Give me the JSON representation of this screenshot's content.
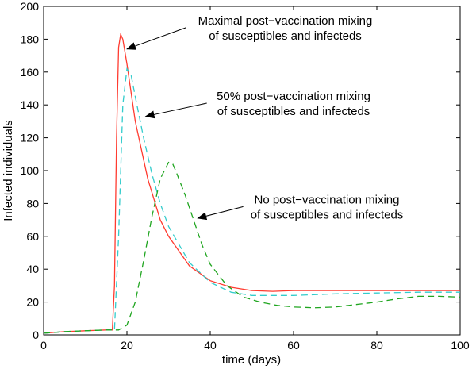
{
  "chart_data": {
    "type": "line",
    "xlabel": "time (days)",
    "ylabel": "Infected individuals",
    "xlim": [
      0,
      100
    ],
    "ylim": [
      0,
      200
    ],
    "xticks": [
      "0",
      "20",
      "40",
      "60",
      "80",
      "100"
    ],
    "yticks": [
      "0",
      "20",
      "40",
      "60",
      "80",
      "100",
      "120",
      "140",
      "160",
      "180",
      "200"
    ],
    "grid": false,
    "series": [
      {
        "color": "#ff3b30",
        "dash": "solid",
        "points": [
          [
            0,
            1
          ],
          [
            5,
            2
          ],
          [
            10,
            2.5
          ],
          [
            15,
            3
          ],
          [
            16.5,
            3
          ],
          [
            17,
            30
          ],
          [
            17.5,
            120
          ],
          [
            18,
            175
          ],
          [
            18.5,
            183
          ],
          [
            19,
            180
          ],
          [
            20,
            165
          ],
          [
            22,
            130
          ],
          [
            25,
            95
          ],
          [
            28,
            70
          ],
          [
            30,
            60
          ],
          [
            35,
            42
          ],
          [
            40,
            33
          ],
          [
            45,
            29
          ],
          [
            50,
            27
          ],
          [
            55,
            26.5
          ],
          [
            60,
            27
          ],
          [
            70,
            27
          ],
          [
            80,
            27
          ],
          [
            90,
            27
          ],
          [
            100,
            27
          ]
        ]
      },
      {
        "color": "#33cccc",
        "dash": "8,5",
        "points": [
          [
            0,
            1
          ],
          [
            5,
            2
          ],
          [
            10,
            2.5
          ],
          [
            15,
            3
          ],
          [
            17,
            3
          ],
          [
            18,
            60
          ],
          [
            19,
            140
          ],
          [
            20,
            162
          ],
          [
            21,
            158
          ],
          [
            22,
            145
          ],
          [
            24,
            120
          ],
          [
            26,
            98
          ],
          [
            28,
            80
          ],
          [
            30,
            66
          ],
          [
            35,
            44
          ],
          [
            40,
            32
          ],
          [
            45,
            26
          ],
          [
            50,
            24
          ],
          [
            60,
            24
          ],
          [
            70,
            25
          ],
          [
            80,
            25.5
          ],
          [
            90,
            26
          ],
          [
            100,
            26
          ]
        ]
      },
      {
        "color": "#1fa51f",
        "dash": "8,5",
        "points": [
          [
            0,
            1
          ],
          [
            5,
            2
          ],
          [
            10,
            2.5
          ],
          [
            15,
            3
          ],
          [
            18,
            3
          ],
          [
            20,
            6
          ],
          [
            22,
            20
          ],
          [
            24,
            45
          ],
          [
            26,
            72
          ],
          [
            28,
            95
          ],
          [
            30,
            105
          ],
          [
            31,
            104
          ],
          [
            32,
            98
          ],
          [
            34,
            85
          ],
          [
            36,
            70
          ],
          [
            38,
            55
          ],
          [
            40,
            43
          ],
          [
            44,
            30
          ],
          [
            48,
            23
          ],
          [
            52,
            20
          ],
          [
            56,
            18
          ],
          [
            60,
            17
          ],
          [
            65,
            16.5
          ],
          [
            70,
            17
          ],
          [
            75,
            18.5
          ],
          [
            80,
            20
          ],
          [
            85,
            22
          ],
          [
            90,
            23.5
          ],
          [
            95,
            23.5
          ],
          [
            100,
            23
          ]
        ]
      }
    ],
    "annotations": [
      {
        "lines": [
          "Maximal post−vaccination mixing",
          "of susceptibles and infecteds"
        ],
        "text_at": [
          58,
          189
        ],
        "arrow_to": [
          20,
          174
        ]
      },
      {
        "lines": [
          "50% post−vaccination mixing",
          "of susceptibles and infecteds"
        ],
        "text_at": [
          60,
          143
        ],
        "arrow_to": [
          24.5,
          133
        ]
      },
      {
        "lines": [
          "No post−vaccination mixing",
          "of susceptibles and infecteds"
        ],
        "text_at": [
          68,
          80
        ],
        "arrow_to": [
          37,
          71
        ]
      }
    ]
  }
}
